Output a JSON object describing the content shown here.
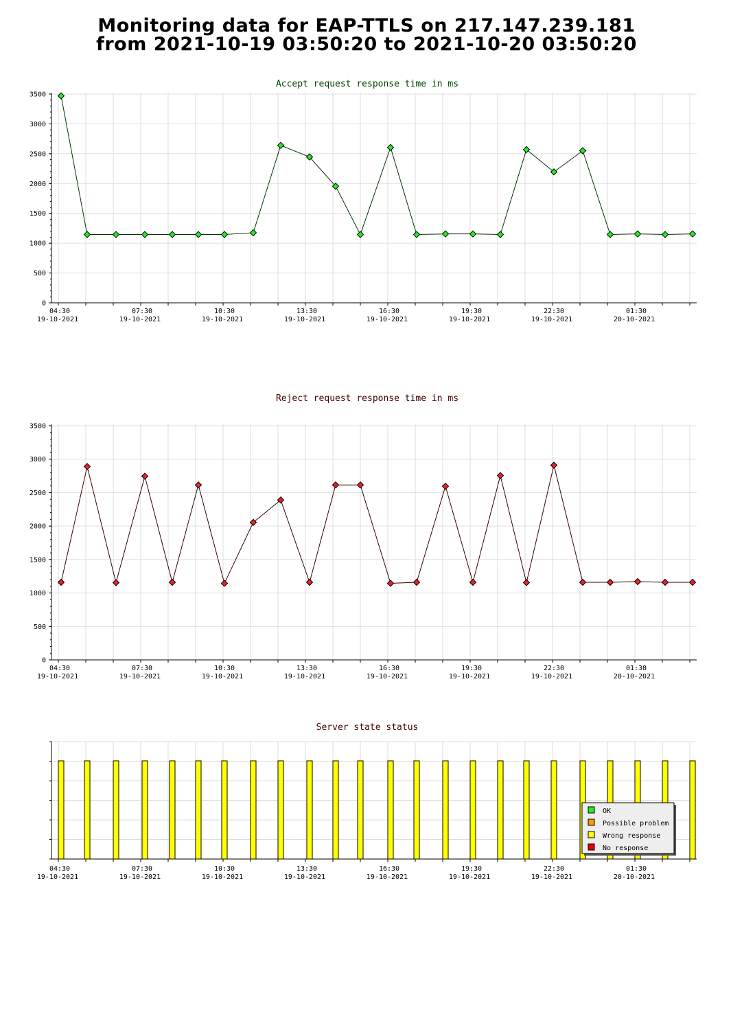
{
  "page": {
    "title_line1": "Monitoring data for EAP-TTLS on 217.147.239.181",
    "title_line2": "from 2021-10-19 03:50:20 to 2021-10-20 03:50:20"
  },
  "chart_data": [
    {
      "type": "line",
      "title": "Accept request response time in ms",
      "title_color": "#004400",
      "line_color": "#003300",
      "marker_color": "#22ee22",
      "ylim": [
        0,
        3500
      ],
      "yticks": [
        0,
        500,
        1000,
        1500,
        2000,
        2500,
        3000,
        3500
      ],
      "grid": true,
      "x_range_hours": [
        4.25,
        27.75
      ],
      "x_tick_labels": [
        {
          "time": "04:30",
          "date": "19-10-2021"
        },
        {
          "time": "07:30",
          "date": "19-10-2021"
        },
        {
          "time": "10:30",
          "date": "19-10-2021"
        },
        {
          "time": "13:30",
          "date": "19-10-2021"
        },
        {
          "time": "16:30",
          "date": "19-10-2021"
        },
        {
          "time": "19:30",
          "date": "19-10-2021"
        },
        {
          "time": "22:30",
          "date": "19-10-2021"
        },
        {
          "time": "01:30",
          "date": "20-10-2021"
        }
      ],
      "x": [
        4.6,
        5.55,
        6.6,
        7.65,
        8.65,
        9.6,
        10.55,
        11.6,
        12.6,
        13.65,
        14.6,
        15.5,
        16.6,
        17.55,
        18.6,
        19.6,
        20.6,
        21.55,
        22.55,
        23.6,
        24.6,
        25.6,
        26.6,
        27.6
      ],
      "values": [
        3470,
        1145,
        1145,
        1145,
        1145,
        1145,
        1145,
        1175,
        2640,
        2445,
        1955,
        1145,
        2605,
        1145,
        1155,
        1155,
        1145,
        2570,
        2195,
        2550,
        1145,
        1155,
        1145,
        1155
      ]
    },
    {
      "type": "line",
      "title": "Reject request response time in ms",
      "title_color": "#440000",
      "line_color": "#330000",
      "marker_color": "#ee2222",
      "ylim": [
        0,
        3500
      ],
      "yticks": [
        0,
        500,
        1000,
        1500,
        2000,
        2500,
        3000,
        3500
      ],
      "grid": true,
      "x_range_hours": [
        4.25,
        27.75
      ],
      "x_tick_labels": [
        {
          "time": "04:30",
          "date": "19-10-2021"
        },
        {
          "time": "07:30",
          "date": "19-10-2021"
        },
        {
          "time": "10:30",
          "date": "19-10-2021"
        },
        {
          "time": "13:30",
          "date": "19-10-2021"
        },
        {
          "time": "16:30",
          "date": "19-10-2021"
        },
        {
          "time": "19:30",
          "date": "19-10-2021"
        },
        {
          "time": "22:30",
          "date": "19-10-2021"
        },
        {
          "time": "01:30",
          "date": "20-10-2021"
        }
      ],
      "x": [
        4.6,
        5.55,
        6.6,
        7.65,
        8.65,
        9.6,
        10.55,
        11.6,
        12.6,
        13.65,
        14.6,
        15.5,
        16.6,
        17.55,
        18.6,
        19.6,
        20.6,
        21.55,
        22.55,
        23.6,
        24.6,
        25.6,
        26.6,
        27.6
      ],
      "values": [
        1160,
        2890,
        1155,
        2745,
        1160,
        2615,
        1145,
        2055,
        2390,
        1160,
        2615,
        2615,
        1145,
        1160,
        2595,
        1160,
        2755,
        1155,
        2910,
        1160,
        1160,
        1170,
        1160,
        1160
      ]
    },
    {
      "type": "bar",
      "title": "Server state status",
      "title_color": "#440000",
      "x_range_hours": [
        4.25,
        27.75
      ],
      "x_tick_labels": [
        {
          "time": "04:30",
          "date": "19-10-2021"
        },
        {
          "time": "07:30",
          "date": "19-10-2021"
        },
        {
          "time": "10:30",
          "date": "19-10-2021"
        },
        {
          "time": "13:30",
          "date": "19-10-2021"
        },
        {
          "time": "16:30",
          "date": "19-10-2021"
        },
        {
          "time": "19:30",
          "date": "19-10-2021"
        },
        {
          "time": "22:30",
          "date": "19-10-2021"
        },
        {
          "time": "01:30",
          "date": "20-10-2021"
        }
      ],
      "x": [
        4.6,
        5.55,
        6.6,
        7.65,
        8.65,
        9.6,
        10.55,
        11.6,
        12.6,
        13.65,
        14.6,
        15.5,
        16.6,
        17.55,
        18.6,
        19.6,
        20.6,
        21.55,
        22.55,
        23.6,
        24.6,
        25.6,
        26.6,
        27.6
      ],
      "states": [
        "Wrong response",
        "Wrong response",
        "Wrong response",
        "Wrong response",
        "Wrong response",
        "Wrong response",
        "Wrong response",
        "Wrong response",
        "Wrong response",
        "Wrong response",
        "Wrong response",
        "Wrong response",
        "Wrong response",
        "Wrong response",
        "Wrong response",
        "Wrong response",
        "Wrong response",
        "Wrong response",
        "Wrong response",
        "Wrong response",
        "Wrong response",
        "Wrong response",
        "Wrong response",
        "Wrong response"
      ],
      "legend_position": "bottom-right",
      "legend": [
        {
          "label": "OK",
          "color": "#22ee22"
        },
        {
          "label": "Possible problem",
          "color": "#ff9900"
        },
        {
          "label": "Wrong response",
          "color": "#ffff00"
        },
        {
          "label": "No response",
          "color": "#ee0000"
        }
      ]
    }
  ]
}
